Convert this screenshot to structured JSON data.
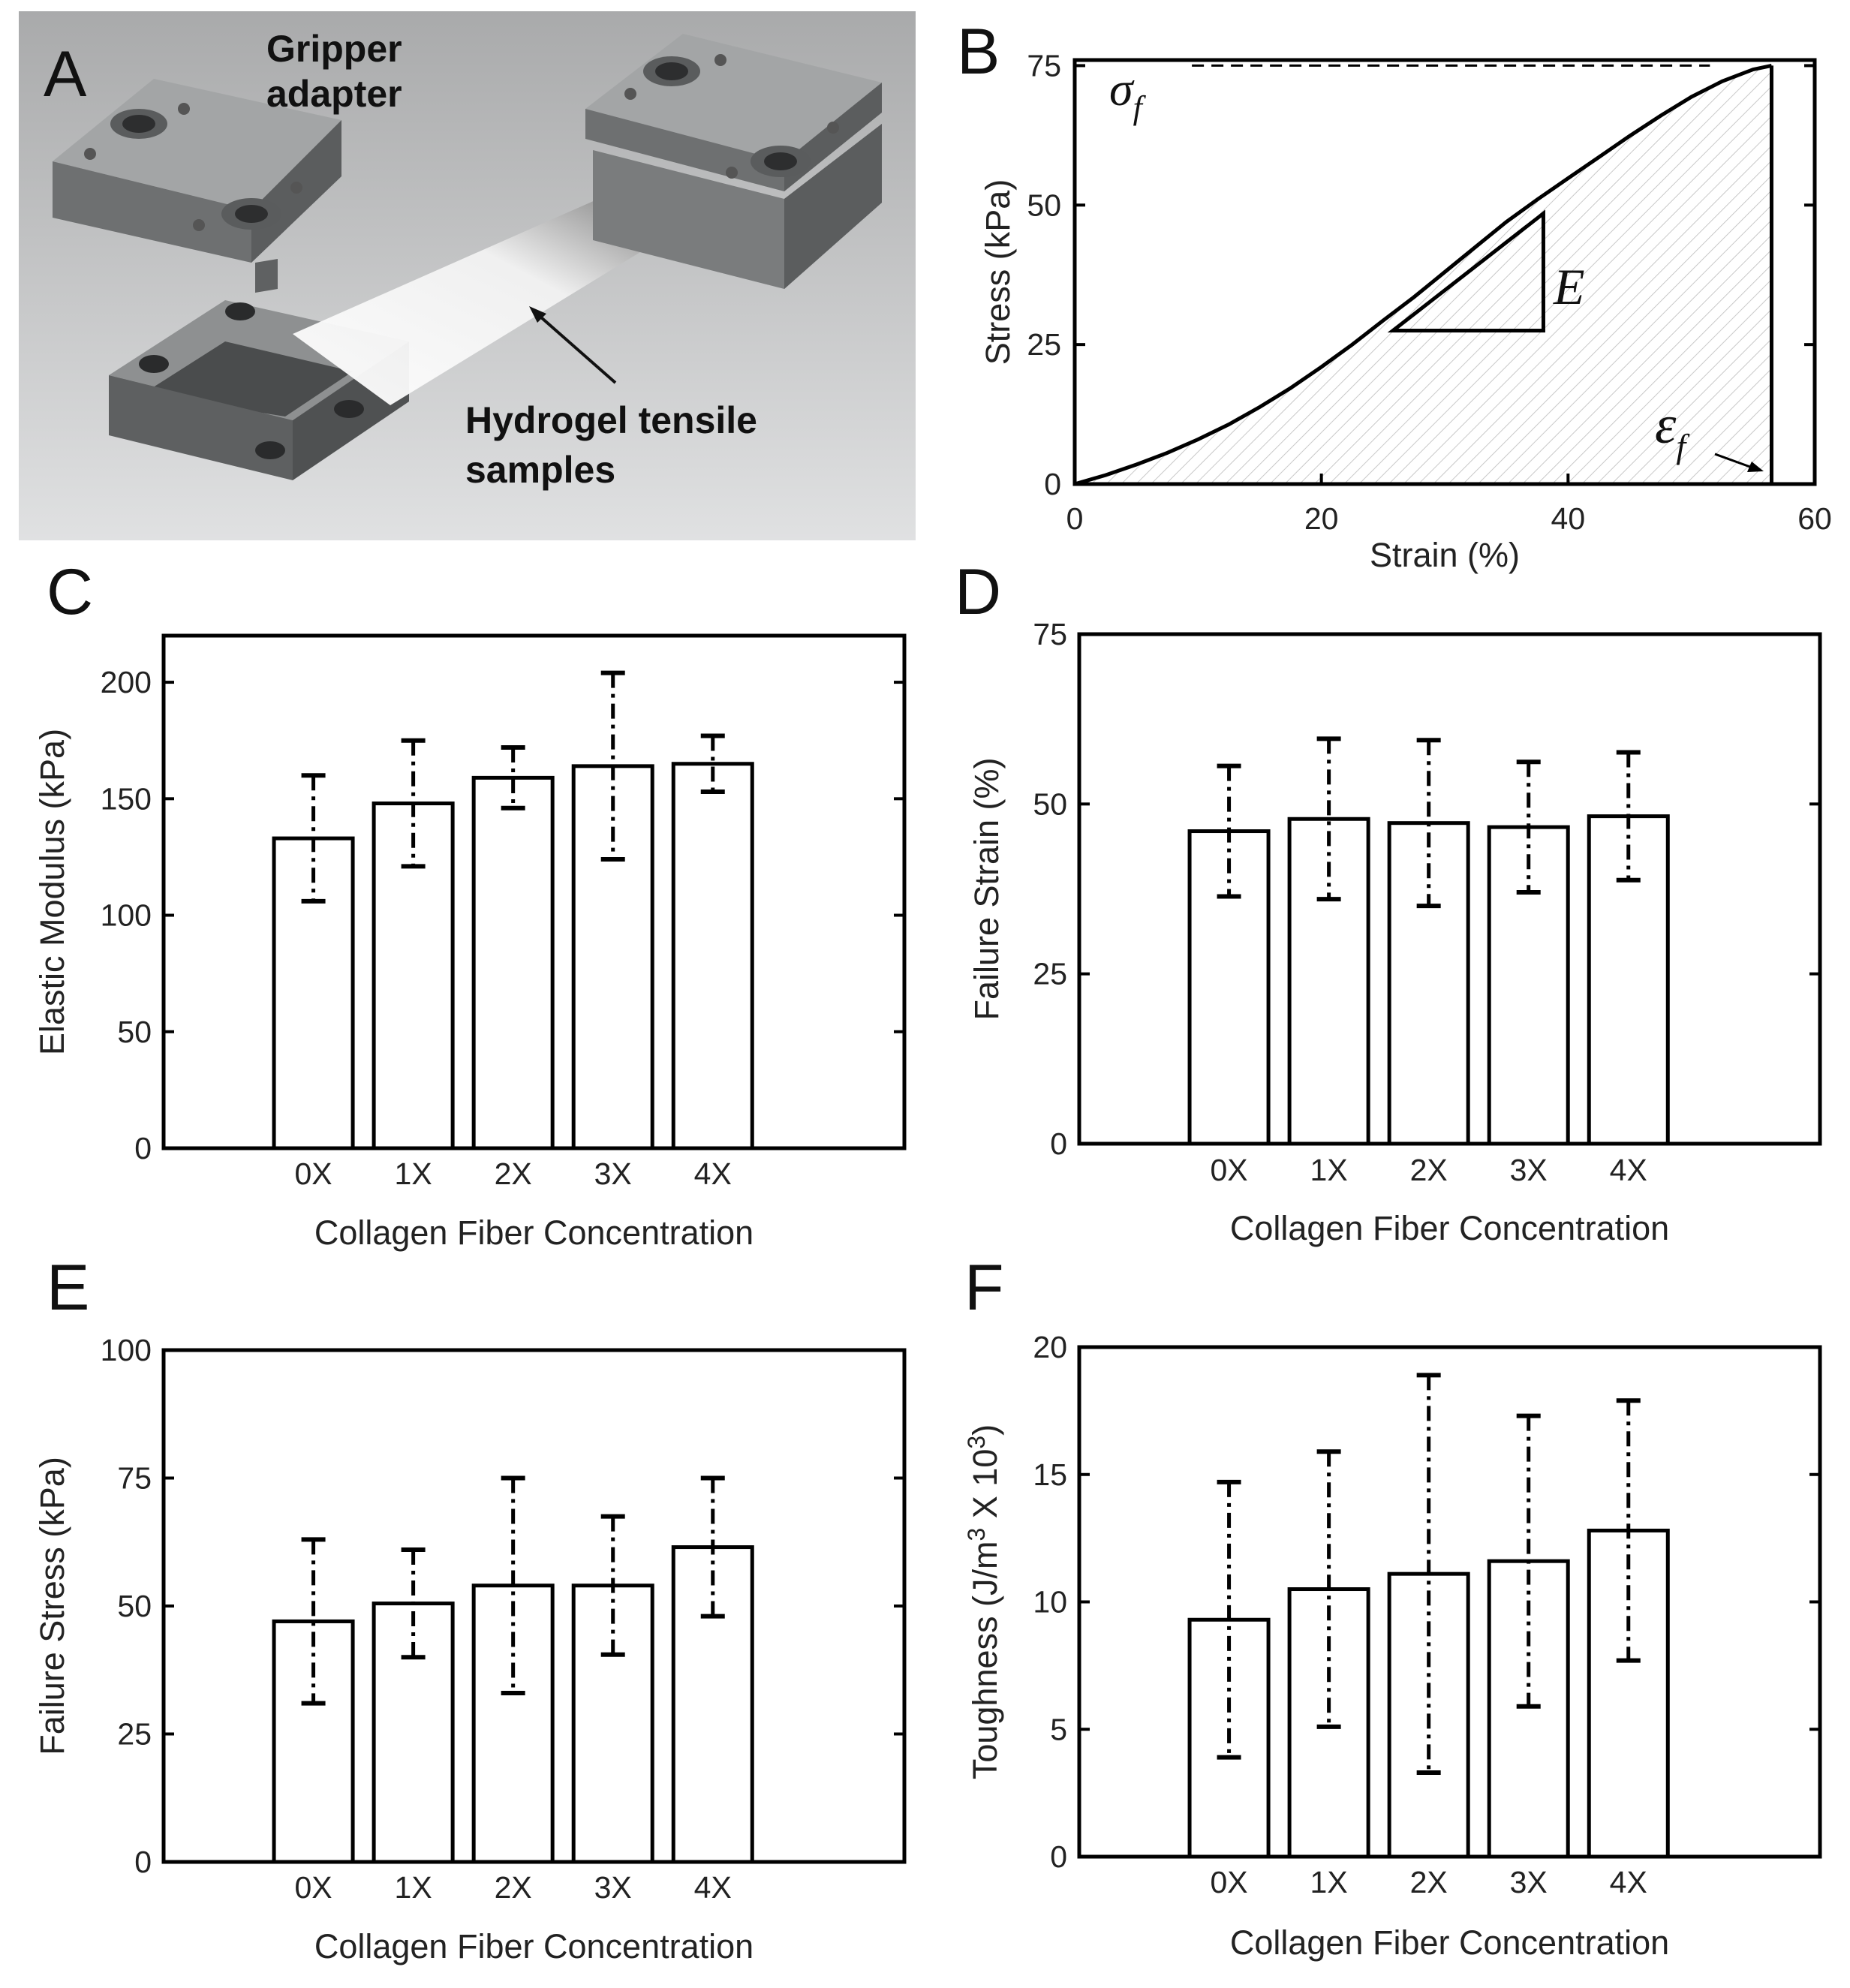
{
  "figure": {
    "panel_a": {
      "letter": "A",
      "labels": [
        "Gripper",
        "adapter",
        "Hydrogel tensile",
        "samples"
      ]
    },
    "panel_b": {
      "letter": "B",
      "sigma_symbol": "σ",
      "sigma_subscript": "f",
      "modulus_symbol": "E",
      "epsilon_symbol": "ε",
      "epsilon_subscript": "f"
    }
  },
  "chart_data": [
    {
      "panel": "B",
      "type": "line",
      "xlabel": "Strain (%)",
      "ylabel": "Stress (kPa)",
      "xlim": [
        0,
        60
      ],
      "ylim": [
        0,
        76
      ],
      "xticks": [
        0,
        20,
        40,
        60
      ],
      "yticks": [
        0,
        25,
        50,
        75
      ],
      "failure_stress": 75,
      "failure_strain": 56.5,
      "series": [
        {
          "name": "stress-strain",
          "x": [
            0,
            2.5,
            5,
            7.5,
            10,
            12.5,
            15,
            17.5,
            20,
            22.5,
            25,
            27.5,
            30,
            32.5,
            35,
            37.5,
            40,
            42.5,
            45,
            47.5,
            50,
            52.5,
            55,
            56.5
          ],
          "y": [
            0,
            1.6,
            3.5,
            5.6,
            8,
            10.7,
            13.8,
            17.2,
            21,
            25,
            29.3,
            33.5,
            38,
            42.5,
            47,
            51,
            54.8,
            58.6,
            62.4,
            66,
            69.4,
            72.2,
            74.3,
            75
          ]
        }
      ],
      "modulus_triangle": {
        "x1": 25.8,
        "x2": 38,
        "y1": 27.5,
        "y2": 48.5
      }
    },
    {
      "panel": "C",
      "type": "bar",
      "categories": [
        "0X",
        "1X",
        "2X",
        "3X",
        "4X"
      ],
      "values": [
        133,
        148,
        159,
        164,
        165
      ],
      "errors": [
        27,
        27,
        13,
        40,
        12
      ],
      "xlabel": "Collagen Fiber Concentration",
      "ylabel": "Elastic Modulus (kPa)",
      "ylim": [
        0,
        220
      ],
      "yticks": [
        0,
        50,
        100,
        150,
        200
      ]
    },
    {
      "panel": "D",
      "type": "bar",
      "categories": [
        "0X",
        "1X",
        "2X",
        "3X",
        "4X"
      ],
      "values": [
        46,
        47.8,
        47.2,
        46.6,
        48.2
      ],
      "errors": [
        9.6,
        11.8,
        12.2,
        9.6,
        9.4
      ],
      "xlabel": "Collagen Fiber Concentration",
      "ylabel": "Failure Strain (%)",
      "ylim": [
        0,
        75
      ],
      "yticks": [
        0,
        25,
        50,
        75
      ]
    },
    {
      "panel": "E",
      "type": "bar",
      "categories": [
        "0X",
        "1X",
        "2X",
        "3X",
        "4X"
      ],
      "values": [
        47,
        50.5,
        54,
        54,
        61.5
      ],
      "errors": [
        16,
        10.5,
        21,
        13.5,
        13.5
      ],
      "xlabel": "Collagen Fiber Concentration",
      "ylabel": "Failure Stress (kPa)",
      "ylim": [
        0,
        100
      ],
      "yticks": [
        0,
        25,
        50,
        75,
        100
      ]
    },
    {
      "panel": "F",
      "type": "bar",
      "categories": [
        "0X",
        "1X",
        "2X",
        "3X",
        "4X"
      ],
      "values": [
        9.3,
        10.5,
        11.1,
        11.6,
        12.8
      ],
      "errors": [
        5.4,
        5.4,
        7.8,
        5.7,
        5.1
      ],
      "xlabel": "Collagen Fiber Concentration",
      "ylabel": "Toughness (J/m",
      "ylabel_superscript": "3",
      "ylabel_middle": " X 10",
      "ylabel_superscript2": "3",
      "ylabel_suffix": ")",
      "ylim": [
        0,
        20
      ],
      "yticks": [
        0,
        5,
        10,
        15,
        20
      ]
    }
  ]
}
